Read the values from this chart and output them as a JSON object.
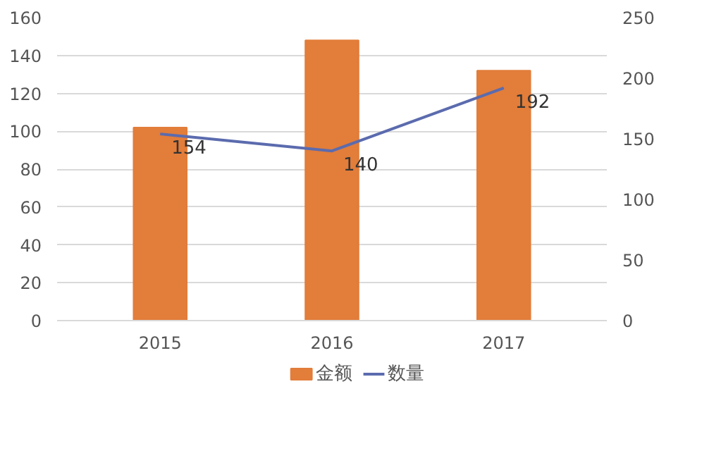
{
  "chart_data": {
    "type": "bar",
    "categories": [
      "2015",
      "2016",
      "2017"
    ],
    "series": [
      {
        "name": "金额",
        "color": "#e27d3a",
        "values": [
          102,
          148,
          132
        ]
      },
      {
        "name": "数量",
        "type": "line",
        "axis": "y2",
        "color": "#5b6bae",
        "values": [
          154,
          140,
          192
        ],
        "value_labels": [
          "154",
          "140",
          "192"
        ]
      }
    ],
    "ylim": [
      0,
      160
    ],
    "yticks": [
      0,
      20,
      40,
      60,
      80,
      100,
      120,
      140,
      160
    ],
    "y2lim": [
      0,
      250
    ],
    "y2ticks": [
      0,
      50,
      100,
      150,
      200,
      250
    ],
    "grid": "y",
    "legend": "bottom",
    "marker": "none",
    "line_style": "solid"
  }
}
